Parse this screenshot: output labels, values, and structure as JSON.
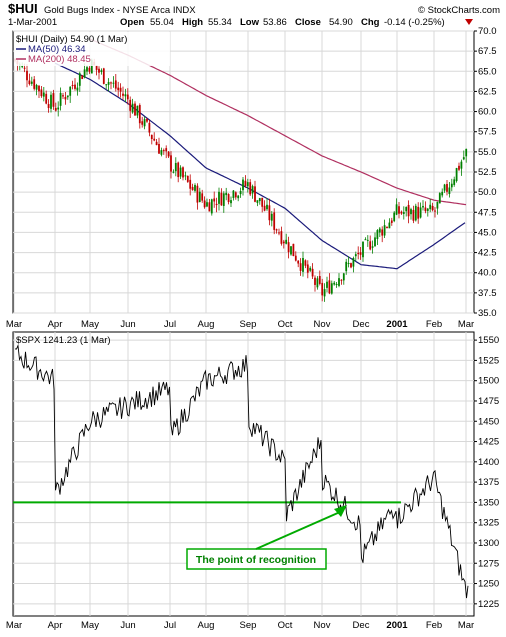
{
  "header": {
    "symbol": "$HUI",
    "name": "Gold Bugs Index - NYSE Arca INDX",
    "copyright": "© StockCharts.com",
    "date": "1-Mar-2001",
    "quote": {
      "open_label": "Open",
      "open": "55.04",
      "high_label": "High",
      "high": "55.34",
      "low_label": "Low",
      "low": "53.86",
      "close_label": "Close",
      "close": "54.90",
      "chg_label": "Chg",
      "chg": "-0.14 (-0.25%)",
      "chg_color": "#c00000"
    }
  },
  "colors": {
    "up": "#008000",
    "down": "#c00000",
    "ma50": "#1a1a7a",
    "ma200": "#b03060",
    "spx": "#000000",
    "support": "#00aa00",
    "annotation_text": "#008000",
    "grid": "#d8d8d8"
  },
  "x_labels": [
    "Mar",
    "Apr",
    "May",
    "Jun",
    "Jul",
    "Aug",
    "Sep",
    "Oct",
    "Nov",
    "Dec",
    "2001",
    "Feb",
    "Mar"
  ],
  "chart_data": [
    {
      "type": "candlestick",
      "legend": [
        "$HUI (Daily) 54.90 (1 Mar)",
        "MA(50) 46.34",
        "MA(200) 48.45"
      ],
      "series": [
        {
          "name": "$HUI (Daily) 54.90 (1 Mar)",
          "kind": "price",
          "x": [
            "Mar-00",
            "Apr-00",
            "May-00",
            "Jun-00",
            "Jul-00",
            "Aug-00",
            "Sep-00",
            "Oct-00",
            "Nov-00",
            "Dec-00",
            "Jan-01",
            "Feb-01",
            "Mar-01"
          ],
          "values": [
            66.5,
            60.5,
            66.0,
            61.5,
            53.5,
            48.5,
            51.0,
            44.0,
            37.5,
            42.5,
            47.5,
            47.5,
            54.9
          ]
        },
        {
          "name": "MA(50) 46.34",
          "kind": "ma",
          "x": [
            "Apr-00",
            "May-00",
            "Jun-00",
            "Jul-00",
            "Aug-00",
            "Sep-00",
            "Oct-00",
            "Nov-00",
            "Dec-00",
            "Jan-01",
            "Feb-01",
            "Mar-01"
          ],
          "values": [
            66.0,
            64.0,
            61.0,
            57.0,
            53.0,
            50.5,
            48.0,
            44.0,
            41.0,
            40.5,
            43.5,
            46.3
          ]
        },
        {
          "name": "MA(200) 48.45",
          "kind": "ma",
          "x": [
            "May-00",
            "Jun-00",
            "Jul-00",
            "Aug-00",
            "Sep-00",
            "Oct-00",
            "Nov-00",
            "Dec-00",
            "Jan-01",
            "Feb-01",
            "Mar-01"
          ],
          "values": [
            69.0,
            67.0,
            64.5,
            62.0,
            59.5,
            57.0,
            54.5,
            52.5,
            50.5,
            49.0,
            48.45
          ]
        }
      ],
      "ylim": [
        35,
        70
      ],
      "y_ticks": [
        "35.0",
        "37.5",
        "40.0",
        "42.5",
        "45.0",
        "47.5",
        "50.0",
        "52.5",
        "55.0",
        "57.5",
        "60.0",
        "62.5",
        "65.0",
        "67.5",
        "70.0"
      ],
      "grid": true
    },
    {
      "type": "line",
      "legend": [
        "$SPX 1241.23 (1 Mar)"
      ],
      "series": [
        {
          "name": "$SPX 1241.23 (1 Mar)",
          "x": [
            "Mar-00",
            "Mar-00",
            "Apr-00",
            "Apr-00",
            "May-00",
            "Jun-00",
            "Jul-00",
            "Jul-00",
            "Aug-00",
            "Sep-00",
            "Sep-00",
            "Oct-00",
            "Oct-00",
            "Nov-00",
            "Nov-00",
            "Dec-00",
            "Dec-00",
            "Jan-01",
            "Jan-01",
            "Feb-01",
            "Mar-01"
          ],
          "values": [
            1370,
            1535,
            1500,
            1360,
            1450,
            1470,
            1490,
            1430,
            1500,
            1520,
            1450,
            1400,
            1330,
            1430,
            1380,
            1320,
            1280,
            1350,
            1330,
            1380,
            1241.23
          ]
        }
      ],
      "ylim": [
        1210,
        1560
      ],
      "y_ticks": [
        "1225",
        "1250",
        "1275",
        "1300",
        "1325",
        "1350",
        "1375",
        "1400",
        "1425",
        "1450",
        "1475",
        "1500",
        "1525",
        "1550"
      ],
      "support_level": 1350,
      "annotation": "The point of recognition",
      "grid": true
    }
  ]
}
